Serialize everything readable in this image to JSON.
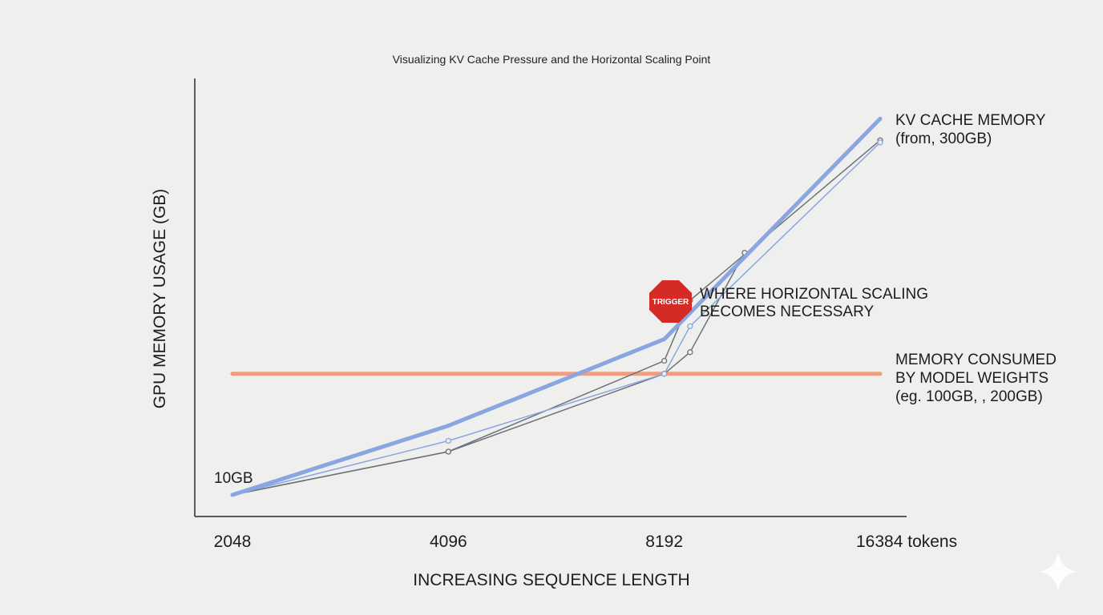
{
  "chart_data": {
    "type": "line",
    "title": "Visualizing KV Cache Pressure and the Horizontal Scaling Point",
    "xlabel": "INCREASING SEQUENCE LENGTH",
    "ylabel": "GPU MEMORY USAGE (GB)",
    "x_ticks": [
      2048,
      4096,
      8192,
      16384
    ],
    "x_tick_labels": [
      "2048",
      "4096",
      "8192",
      "16384 tokens"
    ],
    "x_scale": "log2",
    "y_range": [
      0,
      100
    ],
    "series": [
      {
        "name": "KV CACHE MEMORY",
        "color": "#8aa6e0",
        "style": "thick",
        "points": [
          [
            2048,
            5
          ],
          [
            4096,
            21
          ],
          [
            8192,
            41
          ],
          [
            16384,
            92
          ]
        ]
      },
      {
        "color": "#6c737c",
        "style": "thin-markers",
        "points": [
          [
            2048,
            5
          ],
          [
            4096,
            15
          ],
          [
            8192,
            36
          ],
          [
            8900,
            50
          ],
          [
            16384,
            87
          ]
        ]
      },
      {
        "color": "#8aa6e0",
        "style": "thin-markers",
        "points": [
          [
            2048,
            5
          ],
          [
            4096,
            17.5
          ],
          [
            8192,
            33
          ],
          [
            8900,
            44
          ],
          [
            16384,
            86.5
          ]
        ]
      },
      {
        "color": "#6c737c",
        "style": "thin-markers",
        "points": [
          [
            2048,
            5
          ],
          [
            4096,
            15
          ],
          [
            8192,
            33
          ],
          [
            8900,
            38
          ],
          [
            10600,
            61
          ]
        ]
      }
    ],
    "hline": {
      "label": "MEMORY CONSUMED BY MODEL WEIGHTS",
      "y": 33,
      "color": "#ee9f7f"
    },
    "annotations": {
      "start_label": "10GB",
      "kv_label": [
        "KV CACHE MEMORY",
        "(from, 300GB)"
      ],
      "weights_label": [
        "MEMORY CONSUMED",
        "BY MODEL WEIGHTS",
        "(eg. 100GB, , 200GB)"
      ],
      "trigger_badge": "TRIGGER",
      "trigger_label": [
        "WHERE HORIZONTAL SCALING",
        "BECOMES NECESSARY"
      ],
      "trigger_color": "#d42b27"
    }
  }
}
